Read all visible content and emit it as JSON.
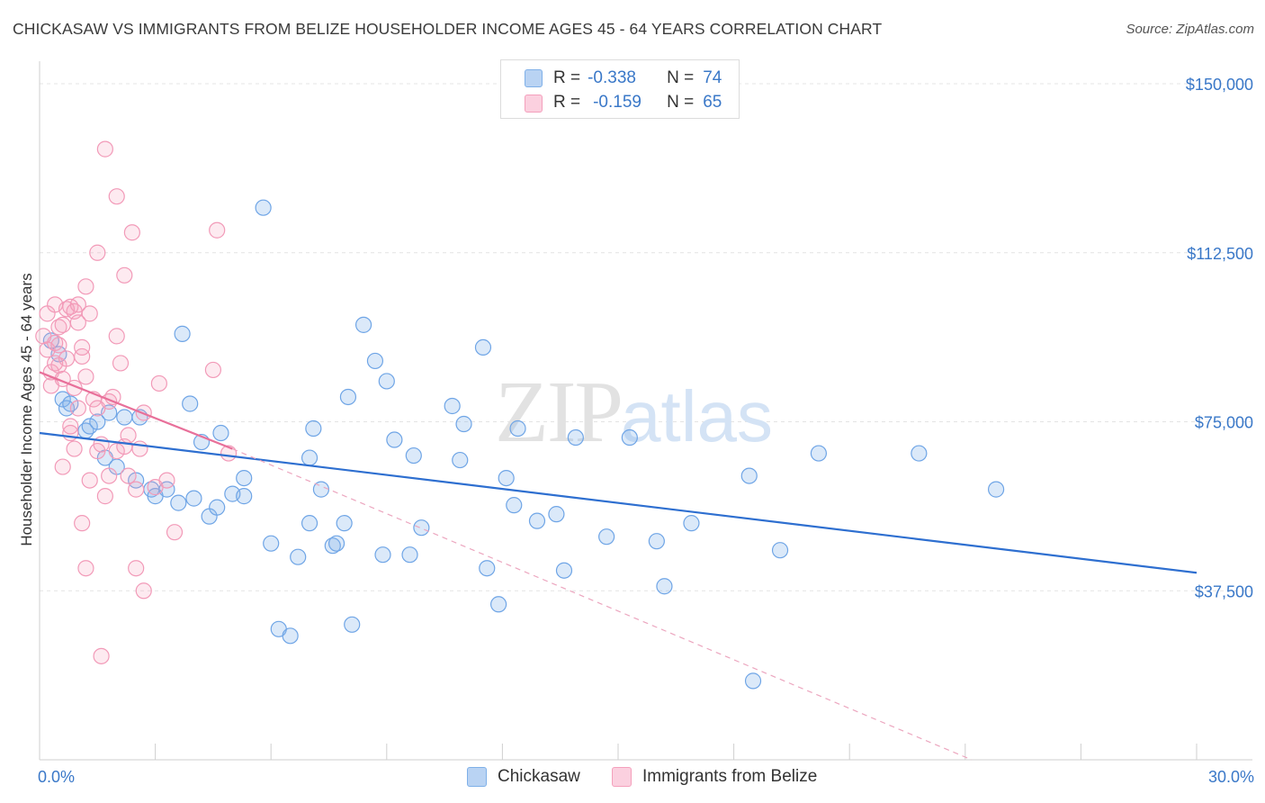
{
  "header": {
    "title": "CHICKASAW VS IMMIGRANTS FROM BELIZE HOUSEHOLDER INCOME AGES 45 - 64 YEARS CORRELATION CHART",
    "source": "Source: ZipAtlas.com"
  },
  "watermark": {
    "zip": "ZIP",
    "atlas": "atlas"
  },
  "legend": {
    "r_label": "R =",
    "n_label": "N =",
    "rows": [
      {
        "name": "Chickasaw",
        "r": "-0.338",
        "n": "74",
        "color": "#7fb0e8"
      },
      {
        "name": "Immigrants from Belize",
        "r": "-0.159",
        "n": "65",
        "color": "#f4a0bc"
      }
    ]
  },
  "chart_data": {
    "type": "scatter",
    "title": "CHICKASAW VS IMMIGRANTS FROM BELIZE HOUSEHOLDER INCOME AGES 45 - 64 YEARS CORRELATION CHART",
    "xlabel": "",
    "ylabel": "Householder Income Ages 45 - 64 years",
    "xlim": [
      0,
      30
    ],
    "ylim": [
      0,
      153000
    ],
    "x_tick_labels": [
      "0.0%",
      "30.0%"
    ],
    "y_ticks": [
      37500,
      75000,
      112500,
      150000
    ],
    "y_tick_labels": [
      "$37,500",
      "$75,000",
      "$112,500",
      "$150,000"
    ],
    "grid": true,
    "legend_position": "top-center",
    "series": [
      {
        "name": "Chickasaw",
        "color": "#6fa5e6",
        "line_color": "#2e6fd0",
        "trend": {
          "x0": 0,
          "y0": 72500,
          "x1": 30,
          "y1": 41500
        },
        "points": [
          [
            0.3,
            93000
          ],
          [
            0.5,
            90000
          ],
          [
            0.6,
            80000
          ],
          [
            0.7,
            78000
          ],
          [
            0.8,
            79000
          ],
          [
            1.2,
            73000
          ],
          [
            1.3,
            74000
          ],
          [
            1.5,
            75000
          ],
          [
            1.7,
            67000
          ],
          [
            1.8,
            77000
          ],
          [
            2.0,
            65000
          ],
          [
            2.2,
            76000
          ],
          [
            2.5,
            62000
          ],
          [
            2.6,
            76000
          ],
          [
            2.9,
            60000
          ],
          [
            3.0,
            58500
          ],
          [
            3.3,
            60000
          ],
          [
            3.6,
            57000
          ],
          [
            3.7,
            94500
          ],
          [
            3.9,
            79000
          ],
          [
            4.0,
            58000
          ],
          [
            4.2,
            70500
          ],
          [
            4.4,
            54000
          ],
          [
            4.6,
            56000
          ],
          [
            4.7,
            72500
          ],
          [
            5.0,
            59000
          ],
          [
            5.3,
            58500
          ],
          [
            5.3,
            62500
          ],
          [
            5.8,
            122500
          ],
          [
            6.0,
            48000
          ],
          [
            6.2,
            29000
          ],
          [
            6.5,
            27500
          ],
          [
            6.7,
            45000
          ],
          [
            7.0,
            67000
          ],
          [
            7.0,
            52500
          ],
          [
            7.1,
            73500
          ],
          [
            7.3,
            60000
          ],
          [
            7.6,
            47500
          ],
          [
            7.7,
            48000
          ],
          [
            7.9,
            52500
          ],
          [
            8.0,
            80500
          ],
          [
            8.1,
            30000
          ],
          [
            8.4,
            96500
          ],
          [
            8.7,
            88500
          ],
          [
            8.9,
            45500
          ],
          [
            9.0,
            84000
          ],
          [
            9.2,
            71000
          ],
          [
            9.6,
            45500
          ],
          [
            9.7,
            67500
          ],
          [
            9.9,
            51500
          ],
          [
            10.7,
            78500
          ],
          [
            10.9,
            66500
          ],
          [
            11.0,
            74500
          ],
          [
            11.5,
            91500
          ],
          [
            11.6,
            42500
          ],
          [
            11.9,
            34500
          ],
          [
            12.1,
            62500
          ],
          [
            12.3,
            56500
          ],
          [
            12.4,
            73500
          ],
          [
            12.9,
            53000
          ],
          [
            13.4,
            54500
          ],
          [
            13.6,
            42000
          ],
          [
            13.9,
            71500
          ],
          [
            14.7,
            49500
          ],
          [
            15.3,
            71500
          ],
          [
            16.0,
            48500
          ],
          [
            16.2,
            38500
          ],
          [
            16.9,
            52500
          ],
          [
            18.4,
            63000
          ],
          [
            18.5,
            17500
          ],
          [
            19.2,
            46500
          ],
          [
            20.2,
            68000
          ],
          [
            22.8,
            68000
          ],
          [
            24.8,
            60000
          ]
        ]
      },
      {
        "name": "Immigrants from Belize",
        "color": "#f29ab8",
        "line_color": "#e8709a",
        "trend": {
          "x0": 0,
          "y0": 86000,
          "x1": 5.0,
          "y1": 69000
        },
        "trend_extension": {
          "x0": 5.0,
          "y0": 69000,
          "x1": 30,
          "y1": -21000
        },
        "points": [
          [
            0.1,
            94000
          ],
          [
            0.2,
            99000
          ],
          [
            0.2,
            91000
          ],
          [
            0.3,
            86000
          ],
          [
            0.3,
            83000
          ],
          [
            0.4,
            101000
          ],
          [
            0.4,
            88000
          ],
          [
            0.5,
            96000
          ],
          [
            0.5,
            92000
          ],
          [
            0.6,
            84500
          ],
          [
            0.6,
            65000
          ],
          [
            0.7,
            89000
          ],
          [
            0.7,
            100000
          ],
          [
            0.8,
            72500
          ],
          [
            0.8,
            100500
          ],
          [
            0.8,
            74000
          ],
          [
            0.9,
            82500
          ],
          [
            0.9,
            99500
          ],
          [
            1.0,
            78000
          ],
          [
            1.0,
            101000
          ],
          [
            1.1,
            89500
          ],
          [
            1.1,
            91500
          ],
          [
            1.1,
            52500
          ],
          [
            1.2,
            42500
          ],
          [
            1.2,
            105000
          ],
          [
            1.3,
            62000
          ],
          [
            1.3,
            99000
          ],
          [
            1.4,
            80000
          ],
          [
            1.5,
            68500
          ],
          [
            1.5,
            78000
          ],
          [
            1.5,
            112500
          ],
          [
            1.6,
            23000
          ],
          [
            1.6,
            70000
          ],
          [
            1.7,
            58500
          ],
          [
            1.7,
            135500
          ],
          [
            1.8,
            79500
          ],
          [
            1.8,
            63000
          ],
          [
            1.9,
            80500
          ],
          [
            2.0,
            125000
          ],
          [
            2.0,
            94000
          ],
          [
            2.0,
            68500
          ],
          [
            2.1,
            88000
          ],
          [
            2.2,
            107500
          ],
          [
            2.2,
            69500
          ],
          [
            2.3,
            72000
          ],
          [
            2.3,
            63000
          ],
          [
            2.4,
            117000
          ],
          [
            2.5,
            42500
          ],
          [
            2.6,
            69000
          ],
          [
            2.7,
            37500
          ],
          [
            2.7,
            77000
          ],
          [
            3.0,
            60500
          ],
          [
            3.1,
            83500
          ],
          [
            3.5,
            50500
          ],
          [
            4.6,
            117500
          ],
          [
            4.5,
            86500
          ],
          [
            4.9,
            68000
          ],
          [
            0.9,
            69000
          ],
          [
            1.2,
            85000
          ],
          [
            0.5,
            87500
          ],
          [
            0.6,
            96500
          ],
          [
            0.4,
            92500
          ],
          [
            1.0,
            97000
          ],
          [
            2.5,
            60000
          ],
          [
            3.3,
            62000
          ]
        ]
      }
    ]
  }
}
